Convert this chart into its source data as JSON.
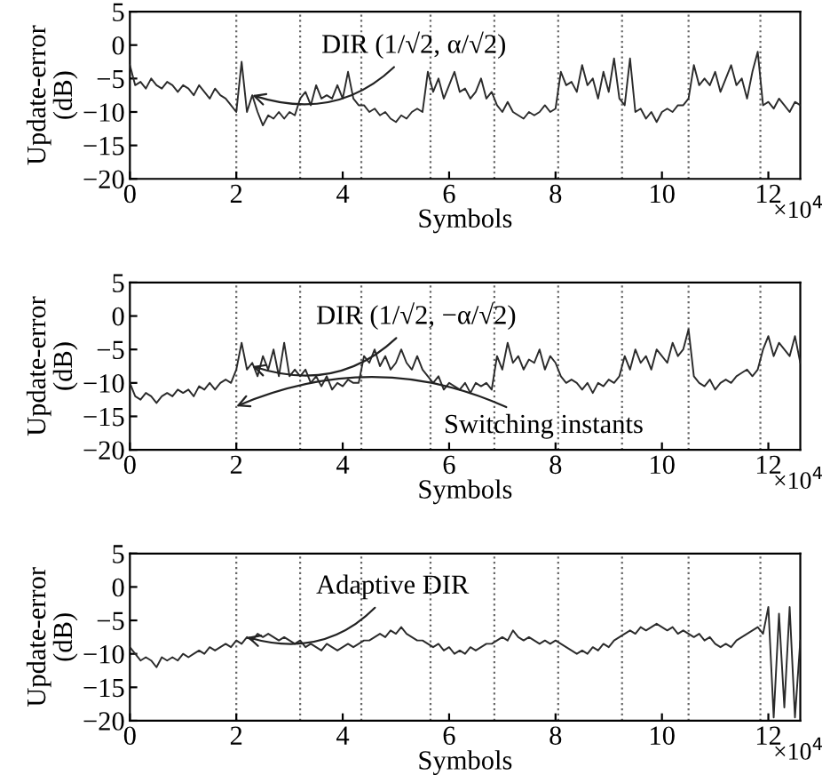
{
  "chart_data": [
    {
      "type": "line",
      "xlabel": "Symbols",
      "ylabel": "Update-error\n(dB)",
      "xlim": [
        0,
        12.6
      ],
      "ylim": [
        -20,
        5
      ],
      "xticks": [
        0,
        2,
        4,
        6,
        8,
        10,
        12
      ],
      "yticks": [
        -20,
        -15,
        -10,
        -5,
        0,
        5
      ],
      "grid": false,
      "annotations": [
        {
          "text": "DIR (1/√2, α/√2)",
          "x": 2.3,
          "y": -7.5
        },
        "×10$^{4}$"
      ],
      "ref_lines": [
        {
          "axis": "x",
          "value": 2.0,
          "color": "#666666",
          "line_style": "dotted"
        },
        {
          "axis": "x",
          "value": 3.2,
          "color": "#666666",
          "line_style": "dotted"
        },
        {
          "axis": "x",
          "value": 4.35,
          "color": "#666666",
          "line_style": "dotted"
        },
        {
          "axis": "x",
          "value": 5.65,
          "color": "#666666",
          "line_style": "dotted"
        },
        {
          "axis": "x",
          "value": 6.85,
          "color": "#666666",
          "line_style": "dotted"
        },
        {
          "axis": "x",
          "value": 8.05,
          "color": "#666666",
          "line_style": "dotted"
        },
        {
          "axis": "x",
          "value": 9.25,
          "color": "#666666",
          "line_style": "dotted"
        },
        {
          "axis": "x",
          "value": 10.5,
          "color": "#666666",
          "line_style": "dotted"
        },
        {
          "axis": "x",
          "value": 11.85,
          "color": "#666666",
          "line_style": "dotted"
        }
      ],
      "x": [
        0,
        0.1,
        0.2,
        0.3,
        0.4,
        0.5,
        0.6,
        0.7,
        0.8,
        0.9,
        1.0,
        1.1,
        1.2,
        1.3,
        1.4,
        1.5,
        1.6,
        1.7,
        1.8,
        1.9,
        2.0,
        2.1,
        2.2,
        2.3,
        2.4,
        2.5,
        2.6,
        2.7,
        2.8,
        2.9,
        3.0,
        3.1,
        3.2,
        3.3,
        3.4,
        3.5,
        3.6,
        3.7,
        3.8,
        3.9,
        4.0,
        4.1,
        4.2,
        4.3,
        4.4,
        4.5,
        4.6,
        4.7,
        4.8,
        4.9,
        5.0,
        5.1,
        5.2,
        5.3,
        5.4,
        5.5,
        5.6,
        5.7,
        5.8,
        5.9,
        6.0,
        6.1,
        6.2,
        6.3,
        6.4,
        6.5,
        6.6,
        6.7,
        6.8,
        6.9,
        7.0,
        7.1,
        7.2,
        7.3,
        7.4,
        7.5,
        7.6,
        7.7,
        7.8,
        7.9,
        8.0,
        8.1,
        8.2,
        8.3,
        8.4,
        8.5,
        8.6,
        8.7,
        8.8,
        8.9,
        9.0,
        9.1,
        9.2,
        9.3,
        9.4,
        9.5,
        9.6,
        9.7,
        9.8,
        9.9,
        10.0,
        10.1,
        10.2,
        10.3,
        10.4,
        10.5,
        10.6,
        10.7,
        10.8,
        10.9,
        11.0,
        11.1,
        11.2,
        11.3,
        11.4,
        11.5,
        11.6,
        11.7,
        11.8,
        11.9,
        12.0,
        12.1,
        12.2,
        12.3,
        12.4,
        12.5,
        12.6
      ],
      "series": [
        {
          "color": "#2b2b2b",
          "values": [
            -3,
            -6,
            -5.5,
            -6.5,
            -5,
            -6,
            -6.5,
            -5.5,
            -6,
            -7,
            -6,
            -6.5,
            -7.5,
            -6,
            -7,
            -8,
            -6.5,
            -7.5,
            -8,
            -9,
            -10,
            -2.5,
            -10,
            -7.5,
            -10,
            -12,
            -10.5,
            -11,
            -10,
            -11,
            -10,
            -10.5,
            -8,
            -7,
            -9,
            -6,
            -8,
            -7.5,
            -8,
            -6,
            -8,
            -4,
            -8,
            -9,
            -9,
            -10,
            -9.5,
            -10.5,
            -10,
            -11,
            -11.5,
            -10.5,
            -11,
            -10,
            -9.5,
            -10,
            -4,
            -7,
            -5,
            -8,
            -6,
            -4,
            -7,
            -6.5,
            -8,
            -7,
            -5,
            -8,
            -7,
            -9,
            -10,
            -8.5,
            -10,
            -10.5,
            -11,
            -10,
            -10.5,
            -10,
            -9,
            -10,
            -9.5,
            -4,
            -6,
            -5.5,
            -7,
            -3,
            -6,
            -5,
            -8,
            -4,
            -7,
            -2,
            -8,
            -9,
            -2,
            -10,
            -9.5,
            -11,
            -10,
            -11.5,
            -10,
            -9.5,
            -10,
            -9,
            -9,
            -8,
            -3,
            -6,
            -5,
            -6,
            -4,
            -7,
            -5,
            -3,
            -6,
            -5,
            -8,
            -4,
            -1,
            -9,
            -8.5,
            -9.5,
            -8,
            -9,
            -10,
            -8.5,
            -9
          ]
        }
      ]
    },
    {
      "type": "line",
      "xlabel": "Symbols",
      "ylabel": "Update-error\n(dB)",
      "xlim": [
        0,
        12.6
      ],
      "ylim": [
        -20,
        5
      ],
      "xticks": [
        0,
        2,
        4,
        6,
        8,
        10,
        12
      ],
      "yticks": [
        -20,
        -15,
        -10,
        -5,
        0,
        5
      ],
      "grid": false,
      "annotations": [
        {
          "text": "DIR (1/√2, −α/√2)",
          "x": 2.3,
          "y": -7.5
        },
        {
          "text": "Switching instants",
          "x": 2.0,
          "y": -13.5
        },
        "×10$^{4}$"
      ],
      "ref_lines": [
        {
          "axis": "x",
          "value": 2.0,
          "color": "#666666",
          "line_style": "dotted"
        },
        {
          "axis": "x",
          "value": 3.2,
          "color": "#666666",
          "line_style": "dotted"
        },
        {
          "axis": "x",
          "value": 4.35,
          "color": "#666666",
          "line_style": "dotted"
        },
        {
          "axis": "x",
          "value": 5.65,
          "color": "#666666",
          "line_style": "dotted"
        },
        {
          "axis": "x",
          "value": 6.85,
          "color": "#666666",
          "line_style": "dotted"
        },
        {
          "axis": "x",
          "value": 8.05,
          "color": "#666666",
          "line_style": "dotted"
        },
        {
          "axis": "x",
          "value": 9.25,
          "color": "#666666",
          "line_style": "dotted"
        },
        {
          "axis": "x",
          "value": 10.5,
          "color": "#666666",
          "line_style": "dotted"
        },
        {
          "axis": "x",
          "value": 11.85,
          "color": "#666666",
          "line_style": "dotted"
        }
      ],
      "x": [
        0,
        0.1,
        0.2,
        0.3,
        0.4,
        0.5,
        0.6,
        0.7,
        0.8,
        0.9,
        1.0,
        1.1,
        1.2,
        1.3,
        1.4,
        1.5,
        1.6,
        1.7,
        1.8,
        1.9,
        2.0,
        2.1,
        2.2,
        2.3,
        2.4,
        2.5,
        2.6,
        2.7,
        2.8,
        2.9,
        3.0,
        3.1,
        3.2,
        3.3,
        3.4,
        3.5,
        3.6,
        3.7,
        3.8,
        3.9,
        4.0,
        4.1,
        4.2,
        4.3,
        4.4,
        4.5,
        4.6,
        4.7,
        4.8,
        4.9,
        5.0,
        5.1,
        5.2,
        5.3,
        5.4,
        5.5,
        5.6,
        5.7,
        5.8,
        5.9,
        6.0,
        6.1,
        6.2,
        6.3,
        6.4,
        6.5,
        6.6,
        6.7,
        6.8,
        6.9,
        7.0,
        7.1,
        7.2,
        7.3,
        7.4,
        7.5,
        7.6,
        7.7,
        7.8,
        7.9,
        8.0,
        8.1,
        8.2,
        8.3,
        8.4,
        8.5,
        8.6,
        8.7,
        8.8,
        8.9,
        9.0,
        9.1,
        9.2,
        9.3,
        9.4,
        9.5,
        9.6,
        9.7,
        9.8,
        9.9,
        10.0,
        10.1,
        10.2,
        10.3,
        10.4,
        10.5,
        10.6,
        10.7,
        10.8,
        10.9,
        11.0,
        11.1,
        11.2,
        11.3,
        11.4,
        11.5,
        11.6,
        11.7,
        11.8,
        11.9,
        12.0,
        12.1,
        12.2,
        12.3,
        12.4,
        12.5,
        12.6
      ],
      "series": [
        {
          "color": "#2b2b2b",
          "values": [
            -10,
            -12,
            -12.5,
            -11.5,
            -12,
            -13,
            -12,
            -11.5,
            -12,
            -11,
            -11.5,
            -11,
            -12,
            -10.5,
            -11,
            -10,
            -11,
            -10,
            -9.5,
            -10,
            -8,
            -4,
            -8,
            -7,
            -9,
            -6,
            -8,
            -5,
            -9,
            -4,
            -9,
            -8,
            -9,
            -8,
            -10,
            -9,
            -10.5,
            -9,
            -11,
            -10,
            -10.5,
            -9.5,
            -10,
            -10,
            -6,
            -7,
            -5,
            -7.5,
            -6,
            -8,
            -7,
            -5,
            -7,
            -8,
            -6,
            -8,
            -9,
            -10,
            -9,
            -11,
            -10,
            -10.5,
            -11,
            -10,
            -11.5,
            -10,
            -10.5,
            -10,
            -11,
            -6,
            -8,
            -4,
            -7,
            -6,
            -8,
            -6.5,
            -7,
            -5,
            -8,
            -6,
            -7,
            -9,
            -10,
            -9.5,
            -10,
            -11,
            -10,
            -11.5,
            -10,
            -10.5,
            -9.5,
            -10,
            -9,
            -6,
            -8,
            -5,
            -7,
            -6,
            -8,
            -5,
            -6,
            -7,
            -4,
            -6,
            -5,
            -2,
            -9,
            -10,
            -10.5,
            -9.5,
            -11,
            -10,
            -9.5,
            -10,
            -9,
            -8.5,
            -8,
            -9,
            -8,
            -5,
            -3,
            -6,
            -4,
            -5,
            -6,
            -3,
            -7
          ]
        }
      ]
    },
    {
      "type": "line",
      "xlabel": "Symbols",
      "ylabel": "Update-error\n(dB)",
      "xlim": [
        0,
        12.6
      ],
      "ylim": [
        -20,
        5
      ],
      "xticks": [
        0,
        2,
        4,
        6,
        8,
        10,
        12
      ],
      "yticks": [
        -20,
        -15,
        -10,
        -5,
        0,
        5
      ],
      "grid": false,
      "annotations": [
        {
          "text": "Adaptive DIR",
          "x": 2.2,
          "y": -7.5
        },
        "×10$^{4}$"
      ],
      "ref_lines": [
        {
          "axis": "x",
          "value": 2.0,
          "color": "#666666",
          "line_style": "dotted"
        },
        {
          "axis": "x",
          "value": 3.2,
          "color": "#666666",
          "line_style": "dotted"
        },
        {
          "axis": "x",
          "value": 4.35,
          "color": "#666666",
          "line_style": "dotted"
        },
        {
          "axis": "x",
          "value": 5.65,
          "color": "#666666",
          "line_style": "dotted"
        },
        {
          "axis": "x",
          "value": 6.85,
          "color": "#666666",
          "line_style": "dotted"
        },
        {
          "axis": "x",
          "value": 8.05,
          "color": "#666666",
          "line_style": "dotted"
        },
        {
          "axis": "x",
          "value": 9.25,
          "color": "#666666",
          "line_style": "dotted"
        },
        {
          "axis": "x",
          "value": 10.5,
          "color": "#666666",
          "line_style": "dotted"
        },
        {
          "axis": "x",
          "value": 11.85,
          "color": "#666666",
          "line_style": "dotted"
        }
      ],
      "x": [
        0,
        0.1,
        0.2,
        0.3,
        0.4,
        0.5,
        0.6,
        0.7,
        0.8,
        0.9,
        1.0,
        1.1,
        1.2,
        1.3,
        1.4,
        1.5,
        1.6,
        1.7,
        1.8,
        1.9,
        2.0,
        2.1,
        2.2,
        2.3,
        2.4,
        2.5,
        2.6,
        2.7,
        2.8,
        2.9,
        3.0,
        3.1,
        3.2,
        3.3,
        3.4,
        3.5,
        3.6,
        3.7,
        3.8,
        3.9,
        4.0,
        4.1,
        4.2,
        4.3,
        4.4,
        4.5,
        4.6,
        4.7,
        4.8,
        4.9,
        5.0,
        5.1,
        5.2,
        5.3,
        5.4,
        5.5,
        5.6,
        5.7,
        5.8,
        5.9,
        6.0,
        6.1,
        6.2,
        6.3,
        6.4,
        6.5,
        6.6,
        6.7,
        6.8,
        6.9,
        7.0,
        7.1,
        7.2,
        7.3,
        7.4,
        7.5,
        7.6,
        7.7,
        7.8,
        7.9,
        8.0,
        8.1,
        8.2,
        8.3,
        8.4,
        8.5,
        8.6,
        8.7,
        8.8,
        8.9,
        9.0,
        9.1,
        9.2,
        9.3,
        9.4,
        9.5,
        9.6,
        9.7,
        9.8,
        9.9,
        10.0,
        10.1,
        10.2,
        10.3,
        10.4,
        10.5,
        10.6,
        10.7,
        10.8,
        10.9,
        11.0,
        11.1,
        11.2,
        11.3,
        11.4,
        11.5,
        11.6,
        11.7,
        11.8,
        11.9,
        12.0,
        12.1,
        12.2,
        12.3,
        12.4,
        12.5,
        12.6
      ],
      "series": [
        {
          "color": "#2b2b2b",
          "values": [
            -9,
            -10,
            -11,
            -10.5,
            -11,
            -12,
            -10.5,
            -11,
            -10.5,
            -11,
            -10,
            -10.5,
            -10,
            -9.5,
            -10,
            -9,
            -9.5,
            -9,
            -8.5,
            -9,
            -8,
            -8.5,
            -7.5,
            -8,
            -7,
            -7.5,
            -7,
            -7.5,
            -8,
            -7.5,
            -8,
            -8.5,
            -8,
            -9,
            -8.5,
            -9,
            -9.5,
            -8.5,
            -9,
            -9.5,
            -9,
            -8.5,
            -9,
            -8.5,
            -8,
            -8,
            -7.5,
            -7,
            -7.5,
            -6.5,
            -7,
            -6,
            -7,
            -7.5,
            -8,
            -8,
            -8.5,
            -9,
            -8.5,
            -9.5,
            -9,
            -10,
            -9.5,
            -10,
            -9,
            -9.5,
            -9,
            -8.5,
            -8.5,
            -8,
            -7.5,
            -8,
            -6.5,
            -7.5,
            -8,
            -7.5,
            -8,
            -8.5,
            -8,
            -8.5,
            -8,
            -8.5,
            -9,
            -9.5,
            -10,
            -9.5,
            -10,
            -9,
            -9.5,
            -8.5,
            -9,
            -8,
            -7.5,
            -7,
            -6.5,
            -7,
            -6,
            -6.5,
            -6,
            -5.5,
            -6,
            -6.5,
            -6,
            -7,
            -6.5,
            -7,
            -7.5,
            -7,
            -8,
            -7.5,
            -8.5,
            -9,
            -8.5,
            -9,
            -8,
            -7.5,
            -7,
            -6.5,
            -6,
            -7,
            -3,
            -19.5,
            -4,
            -18,
            -3,
            -19.5,
            -8
          ]
        }
      ]
    }
  ]
}
